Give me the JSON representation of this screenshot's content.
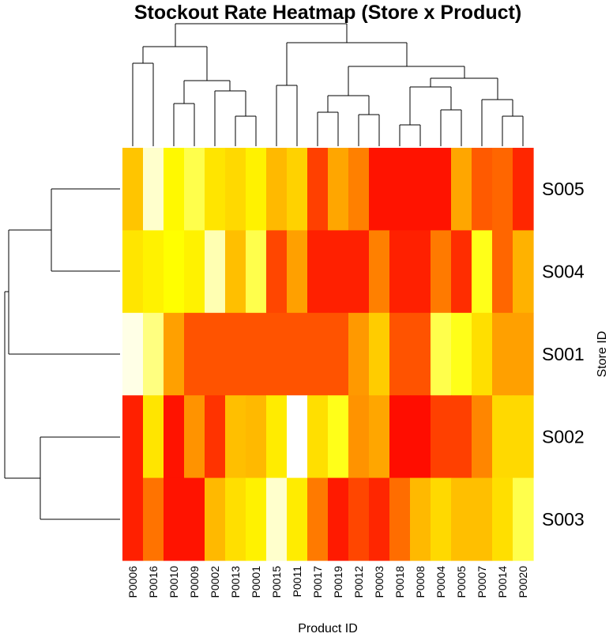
{
  "chart_data": {
    "type": "heatmap",
    "title": "Stockout Rate Heatmap (Store x Product)",
    "xlabel": "Product ID",
    "ylabel": "Store ID",
    "columns": [
      "P0006",
      "P0016",
      "P0010",
      "P0009",
      "P0002",
      "P0013",
      "P0001",
      "P0015",
      "P0011",
      "P0017",
      "P0019",
      "P0012",
      "P0003",
      "P0018",
      "P0008",
      "P0004",
      "P0005",
      "P0007",
      "P0014",
      "P0020"
    ],
    "rows": [
      "S005",
      "S004",
      "S001",
      "S002",
      "S003"
    ],
    "color_scale": [
      "#ff0000",
      "#ff4000",
      "#ff8000",
      "#ffbf00",
      "#ffff00",
      "#ffffff"
    ],
    "values": [
      [
        0.62,
        0.96,
        0.78,
        0.86,
        0.72,
        0.68,
        0.76,
        0.58,
        0.66,
        0.2,
        0.52,
        0.4,
        0.06,
        0.06,
        0.06,
        0.06,
        0.52,
        0.28,
        0.32,
        0.12
      ],
      [
        0.72,
        0.76,
        0.8,
        0.76,
        0.94,
        0.6,
        0.86,
        0.22,
        0.5,
        0.1,
        0.1,
        0.1,
        0.4,
        0.1,
        0.1,
        0.38,
        0.14,
        0.82,
        0.32,
        0.56
      ],
      [
        0.98,
        0.9,
        0.5,
        0.26,
        0.26,
        0.26,
        0.26,
        0.26,
        0.26,
        0.26,
        0.26,
        0.48,
        0.64,
        0.26,
        0.26,
        0.86,
        0.82,
        0.7,
        0.5,
        0.5
      ],
      [
        0.1,
        0.72,
        0.06,
        0.46,
        0.16,
        0.6,
        0.58,
        0.74,
        1.0,
        0.7,
        0.82,
        0.46,
        0.52,
        0.04,
        0.04,
        0.2,
        0.2,
        0.42,
        0.68,
        0.68
      ],
      [
        0.1,
        0.36,
        0.06,
        0.06,
        0.58,
        0.7,
        0.76,
        0.96,
        0.74,
        0.38,
        0.08,
        0.22,
        0.12,
        0.34,
        0.58,
        0.68,
        0.6,
        0.6,
        0.7,
        0.86
      ]
    ]
  }
}
